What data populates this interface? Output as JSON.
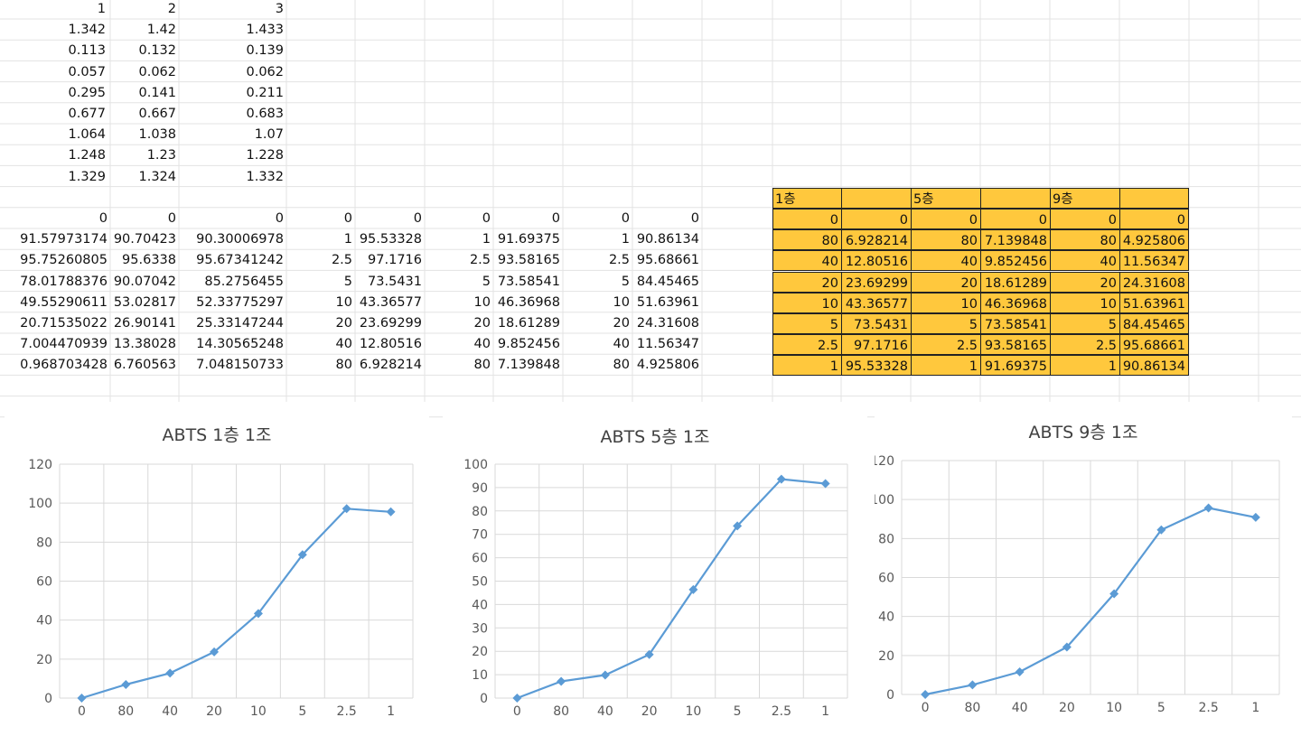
{
  "sheet": {
    "header_row": [
      "1",
      "2",
      "3"
    ],
    "top_rows": [
      [
        "1.342",
        "1.42",
        "1.433"
      ],
      [
        "0.113",
        "0.132",
        "0.139"
      ],
      [
        "0.057",
        "0.062",
        "0.062"
      ],
      [
        "0.295",
        "0.141",
        "0.211"
      ],
      [
        "0.677",
        "0.667",
        "0.683"
      ],
      [
        "1.064",
        "1.038",
        "1.07"
      ],
      [
        "1.248",
        "1.23",
        "1.228"
      ],
      [
        "1.329",
        "1.324",
        "1.332"
      ]
    ],
    "bottom_rows": [
      [
        "0",
        "0",
        "0",
        "0",
        "0",
        "0",
        "0",
        "0",
        "0"
      ],
      [
        "91.57973174",
        "90.70423",
        "90.30006978",
        "1",
        "95.53328",
        "1",
        "91.69375",
        "1",
        "90.86134"
      ],
      [
        "95.75260805",
        "95.6338",
        "95.67341242",
        "2.5",
        "97.1716",
        "2.5",
        "93.58165",
        "2.5",
        "95.68661"
      ],
      [
        "78.01788376",
        "90.07042",
        "85.2756455",
        "5",
        "73.5431",
        "5",
        "73.58541",
        "5",
        "84.45465"
      ],
      [
        "49.55290611",
        "53.02817",
        "52.33775297",
        "10",
        "43.36577",
        "10",
        "46.36968",
        "10",
        "51.63961"
      ],
      [
        "20.71535022",
        "26.90141",
        "25.33147244",
        "20",
        "23.69299",
        "20",
        "18.61289",
        "20",
        "24.31608"
      ],
      [
        "7.004470939",
        "13.38028",
        "14.30565248",
        "40",
        "12.80516",
        "40",
        "9.852456",
        "40",
        "11.56347"
      ],
      [
        "0.968703428",
        "6.760563",
        "7.048150733",
        "80",
        "6.928214",
        "80",
        "7.139848",
        "80",
        "4.925806"
      ]
    ],
    "yellow_table": {
      "headers": [
        "1층",
        "",
        "5층",
        "",
        "9층",
        ""
      ],
      "rows": [
        [
          "0",
          "0",
          "0",
          "0",
          "0",
          "0"
        ],
        [
          "80",
          "6.928214",
          "80",
          "7.139848",
          "80",
          "4.925806"
        ],
        [
          "40",
          "12.80516",
          "40",
          "9.852456",
          "40",
          "11.56347"
        ],
        [
          "20",
          "23.69299",
          "20",
          "18.61289",
          "20",
          "24.31608"
        ],
        [
          "10",
          "43.36577",
          "10",
          "46.36968",
          "10",
          "51.63961"
        ],
        [
          "5",
          "73.5431",
          "5",
          "73.58541",
          "5",
          "84.45465"
        ],
        [
          "2.5",
          "97.1716",
          "2.5",
          "93.58165",
          "2.5",
          "95.68661"
        ],
        [
          "1",
          "95.53328",
          "1",
          "91.69375",
          "1",
          "90.86134"
        ]
      ],
      "fill_color": "#ffc83d"
    }
  },
  "chart_data": [
    {
      "type": "line",
      "title": "ABTS 1층 1조",
      "categories": [
        "0",
        "80",
        "40",
        "20",
        "10",
        "5",
        "2.5",
        "1"
      ],
      "values": [
        0,
        6.928214,
        12.80516,
        23.69299,
        43.36577,
        73.5431,
        97.1716,
        95.53328
      ],
      "ylim": [
        0,
        120
      ],
      "yticks": [
        "0",
        "20",
        "40",
        "60",
        "80",
        "100",
        "120"
      ],
      "grid": true,
      "color": "#5b9bd5",
      "marker": "diamond"
    },
    {
      "type": "line",
      "title": "ABTS 5층 1조",
      "categories": [
        "0",
        "80",
        "40",
        "20",
        "10",
        "5",
        "2.5",
        "1"
      ],
      "values": [
        0,
        7.139848,
        9.852456,
        18.61289,
        46.36968,
        73.58541,
        93.58165,
        91.69375
      ],
      "ylim": [
        0,
        100
      ],
      "yticks": [
        "0",
        "10",
        "20",
        "30",
        "40",
        "50",
        "60",
        "70",
        "80",
        "90",
        "100"
      ],
      "grid": true,
      "color": "#5b9bd5",
      "marker": "diamond"
    },
    {
      "type": "line",
      "title": "ABTS 9층 1조",
      "categories": [
        "0",
        "80",
        "40",
        "20",
        "10",
        "5",
        "2.5",
        "1"
      ],
      "values": [
        0,
        4.925806,
        11.56347,
        24.31608,
        51.63961,
        84.45465,
        95.68661,
        90.86134
      ],
      "ylim": [
        0,
        120
      ],
      "yticks": [
        "0",
        "20",
        "40",
        "60",
        "80",
        "100",
        "120"
      ],
      "grid": true,
      "color": "#5b9bd5",
      "marker": "diamond"
    }
  ]
}
